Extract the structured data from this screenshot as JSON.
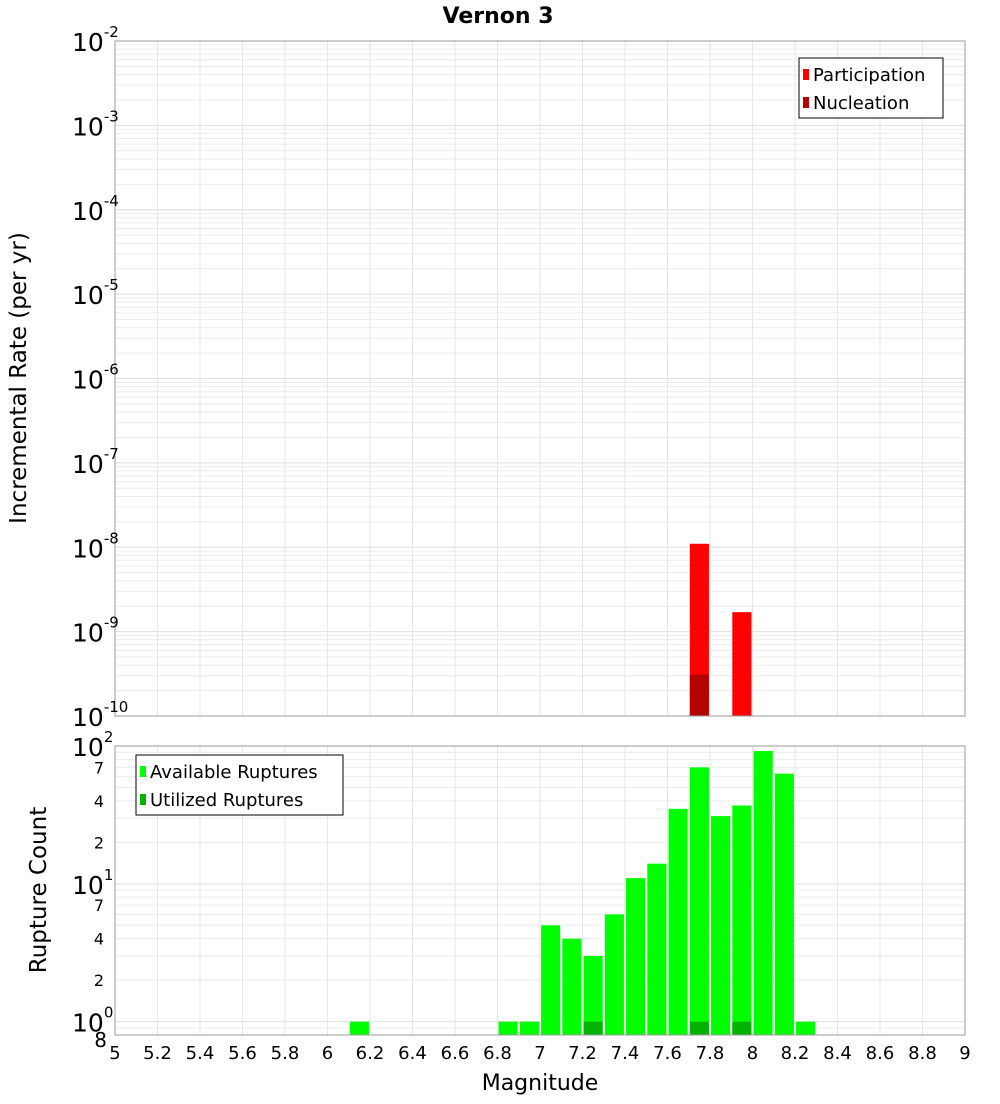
{
  "chart_data": [
    {
      "type": "bar",
      "title": "Vernon 3",
      "xlabel": "",
      "ylabel": "Incremental Rate (per yr)",
      "yscale": "log",
      "ylim": [
        1e-10,
        0.01
      ],
      "xlim": [
        5,
        9
      ],
      "y_ticks": [
        {
          "base": "10",
          "exp": "-2"
        },
        {
          "base": "10",
          "exp": "-3"
        },
        {
          "base": "10",
          "exp": "-4"
        },
        {
          "base": "10",
          "exp": "-5"
        },
        {
          "base": "10",
          "exp": "-6"
        },
        {
          "base": "10",
          "exp": "-7"
        },
        {
          "base": "10",
          "exp": "-8"
        },
        {
          "base": "10",
          "exp": "-9"
        },
        {
          "base": "10",
          "exp": "-10"
        }
      ],
      "grid": true,
      "legend_position": "top-right",
      "series": [
        {
          "name": "Participation",
          "color": "#ff0000",
          "x": [
            7.75,
            7.95
          ],
          "values": [
            1.1e-08,
            1.7e-09
          ]
        },
        {
          "name": "Nucleation",
          "color": "#b30000",
          "x": [
            7.75
          ],
          "values": [
            3.1e-10
          ]
        }
      ]
    },
    {
      "type": "bar",
      "xlabel": "Magnitude",
      "ylabel": "Rupture Count",
      "yscale": "log",
      "ylim": [
        0.8,
        100
      ],
      "xlim": [
        5,
        9
      ],
      "x_ticks": [
        "5",
        "5.2",
        "5.4",
        "5.6",
        "5.8",
        "6",
        "6.2",
        "6.4",
        "6.6",
        "6.8",
        "7",
        "7.2",
        "7.4",
        "7.6",
        "7.8",
        "8",
        "8.2",
        "8.4",
        "8.6",
        "8.8",
        "9"
      ],
      "y_ticks": [
        {
          "text": "10",
          "exp": "2"
        },
        {
          "text": "7"
        },
        {
          "text": "4"
        },
        {
          "text": "2"
        },
        {
          "text": "10",
          "exp": "1"
        },
        {
          "text": "7"
        },
        {
          "text": "4"
        },
        {
          "text": "2"
        },
        {
          "text": "10",
          "exp": "0"
        },
        {
          "text": "8"
        }
      ],
      "grid": true,
      "legend_position": "top-left",
      "series": [
        {
          "name": "Available Ruptures",
          "color": "#00ff00",
          "x": [
            6.15,
            6.85,
            6.95,
            7.05,
            7.15,
            7.25,
            7.35,
            7.45,
            7.55,
            7.65,
            7.75,
            7.85,
            7.95,
            8.05,
            8.15,
            8.25
          ],
          "values": [
            1,
            1,
            1,
            5,
            4,
            3,
            6,
            11,
            14,
            35,
            70,
            31,
            37,
            92,
            63,
            1
          ]
        },
        {
          "name": "Utilized Ruptures",
          "color": "#00b300",
          "x": [
            7.25,
            7.75,
            7.95
          ],
          "values": [
            1,
            1,
            1
          ]
        }
      ]
    }
  ]
}
